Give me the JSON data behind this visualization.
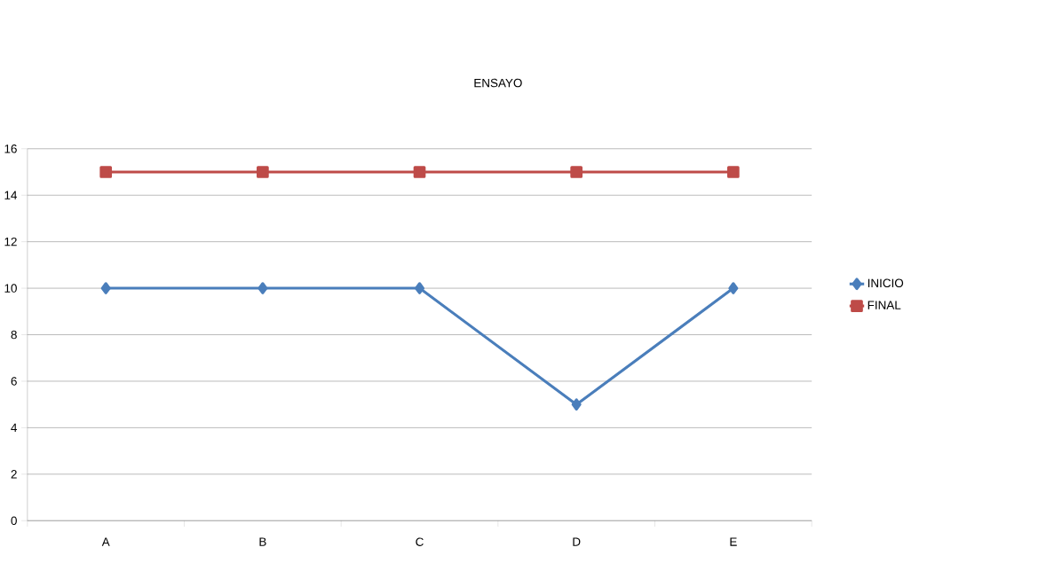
{
  "chart_data": {
    "type": "line",
    "title": "ENSAYO",
    "categories": [
      "A",
      "B",
      "C",
      "D",
      "E"
    ],
    "series": [
      {
        "name": "INICIO",
        "color": "#4a7ebb",
        "marker": "diamond",
        "values": [
          10,
          10,
          10,
          5,
          10
        ]
      },
      {
        "name": "FINAL",
        "color": "#be4b48",
        "marker": "square",
        "values": [
          15,
          15,
          15,
          15,
          15
        ]
      }
    ],
    "ylim": [
      0,
      16
    ],
    "yticks": [
      0,
      2,
      4,
      6,
      8,
      10,
      12,
      14,
      16
    ],
    "grid": "y",
    "legend": "right"
  }
}
